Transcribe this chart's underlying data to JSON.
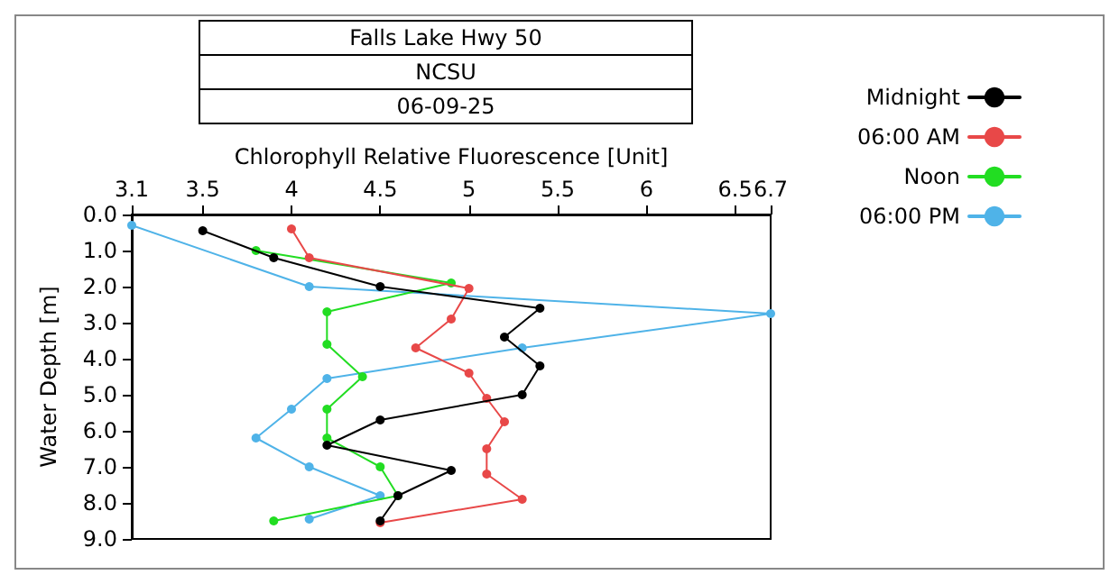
{
  "chart_data": {
    "type": "line",
    "title": "Falls Lake Hwy 50",
    "subtitle": "NCSU",
    "annotations": [
      "06-09-25"
    ],
    "xlabel": "Chlorophyll Relative Fluorescence [Unit]",
    "ylabel": "Water Depth [m]",
    "xlim": [
      3.1,
      6.7
    ],
    "xticks": [
      3.1,
      3.5,
      4,
      4.5,
      5,
      5.5,
      6,
      6.5,
      6.7
    ],
    "ylim": [
      9,
      0
    ],
    "yticks": [
      {
        "value": 0,
        "label": "0.0"
      },
      {
        "value": 1,
        "label": "1.0"
      },
      {
        "value": 2,
        "label": "2.0"
      },
      {
        "value": 3,
        "label": "3.0"
      },
      {
        "value": 4,
        "label": "4.0"
      },
      {
        "value": 5,
        "label": "5.0"
      },
      {
        "value": 6,
        "label": "6.0"
      },
      {
        "value": 7,
        "label": "7.0"
      },
      {
        "value": 8,
        "label": "8.0"
      },
      {
        "value": 9,
        "label": "9.0"
      }
    ],
    "legend": "right",
    "marker": "circle",
    "line_style": "solid",
    "series": [
      {
        "name": "Midnight",
        "color": "#000000",
        "x": [
          3.5,
          3.9,
          4.5,
          5.4,
          5.2,
          5.4,
          5.3,
          4.5,
          4.2,
          4.9,
          4.6,
          4.5
        ],
        "values": [
          0.45,
          1.2,
          2.0,
          2.6,
          3.4,
          4.2,
          5.0,
          5.7,
          6.4,
          7.1,
          7.8,
          8.5
        ]
      },
      {
        "name": "06:00 AM",
        "color": "#e84848",
        "x": [
          4.0,
          4.1,
          5.0,
          4.9,
          4.7,
          5.0,
          5.1,
          5.2,
          5.1,
          5.1,
          5.3,
          4.5
        ],
        "values": [
          0.4,
          1.2,
          2.05,
          2.9,
          3.7,
          4.4,
          5.1,
          5.75,
          6.5,
          7.2,
          7.9,
          8.55
        ]
      },
      {
        "name": "Noon",
        "color": "#22dd22",
        "x": [
          3.8,
          4.9,
          4.2,
          4.2,
          4.4,
          4.2,
          4.2,
          4.5,
          4.6,
          3.9
        ],
        "values": [
          1.0,
          1.9,
          2.7,
          3.6,
          4.5,
          5.4,
          6.2,
          7.0,
          7.8,
          8.5
        ]
      },
      {
        "name": "06:00 PM",
        "color": "#4fb3e8",
        "x": [
          3.1,
          4.1,
          6.7,
          5.3,
          4.2,
          4.0,
          3.8,
          4.1,
          4.5,
          4.1
        ],
        "values": [
          0.3,
          2.0,
          2.75,
          3.7,
          4.55,
          5.4,
          6.2,
          7.0,
          7.8,
          8.45
        ]
      }
    ]
  }
}
